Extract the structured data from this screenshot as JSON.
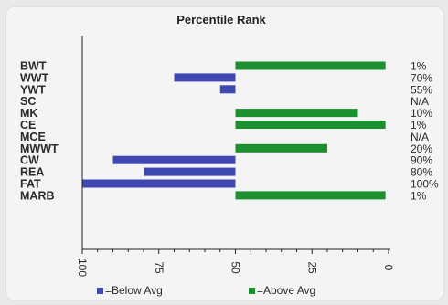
{
  "chart_data": {
    "type": "bar",
    "title": "Percentile Rank",
    "xlim": [
      100,
      0
    ],
    "x_ticks": [
      "100",
      "75",
      "50",
      "25",
      "0"
    ],
    "baseline": 50,
    "categories": [
      "BWT",
      "WWT",
      "YWT",
      "SC",
      "MK",
      "CE",
      "MCE",
      "MWWT",
      "CW",
      "REA",
      "FAT",
      "MARB"
    ],
    "percentiles": [
      "1%",
      "70%",
      "55%",
      "N/A",
      "10%",
      "1%",
      "N/A",
      "20%",
      "90%",
      "80%",
      "100%",
      "1%"
    ],
    "values": [
      1,
      70,
      55,
      null,
      10,
      1,
      null,
      20,
      90,
      80,
      100,
      1
    ],
    "legend": [
      {
        "label": "=Below Avg",
        "color": "#3f48b0"
      },
      {
        "label": "=Above Avg",
        "color": "#1c8f2f"
      }
    ],
    "colors": {
      "below": "#3f48b0",
      "above": "#1c8f2f"
    }
  }
}
